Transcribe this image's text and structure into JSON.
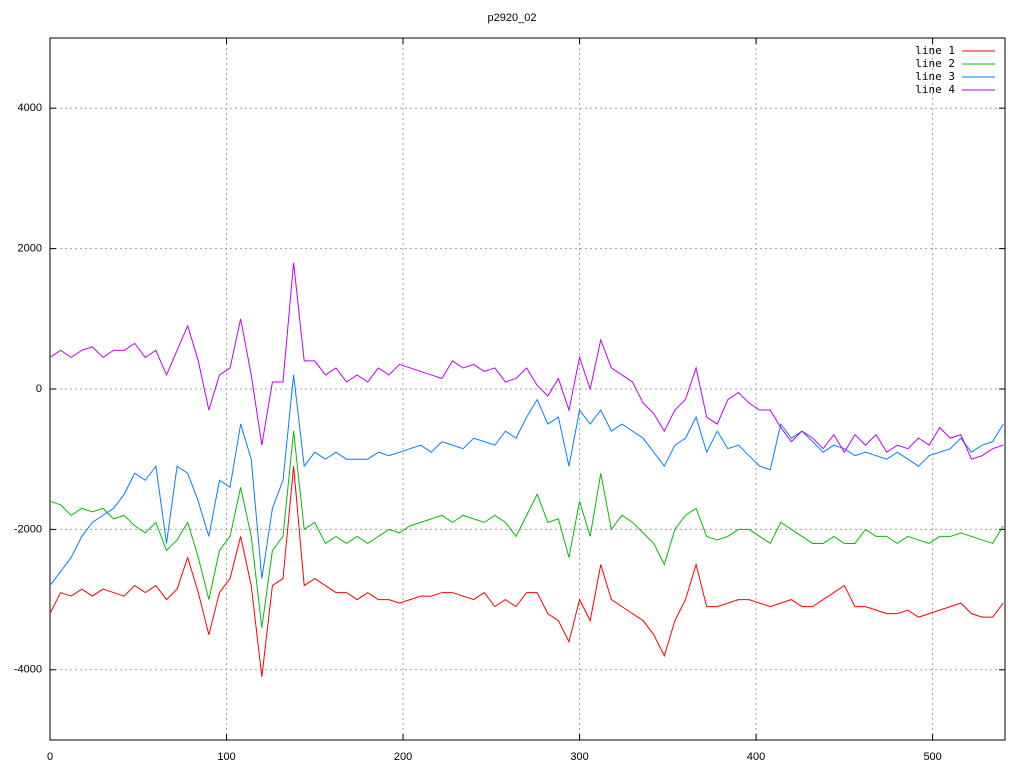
{
  "chart_data": {
    "type": "line",
    "title": "p2920_02",
    "x": [
      0,
      6,
      12,
      18,
      24,
      30,
      36,
      42,
      48,
      54,
      60,
      66,
      72,
      78,
      84,
      90,
      96,
      102,
      108,
      114,
      120,
      126,
      132,
      138,
      144,
      150,
      156,
      162,
      168,
      174,
      180,
      186,
      192,
      198,
      204,
      210,
      216,
      222,
      228,
      234,
      240,
      246,
      252,
      258,
      264,
      270,
      276,
      282,
      288,
      294,
      300,
      306,
      312,
      318,
      324,
      330,
      336,
      342,
      348,
      354,
      360,
      366,
      372,
      378,
      384,
      390,
      396,
      402,
      408,
      414,
      420,
      426,
      432,
      438,
      444,
      450,
      456,
      462,
      468,
      474,
      480,
      486,
      492,
      498,
      504,
      510,
      516,
      522,
      528,
      534,
      540
    ],
    "series": [
      {
        "name": "line 1",
        "color": "#ff0000",
        "values": [
          -3200,
          -2900,
          -2950,
          -2850,
          -2950,
          -2850,
          -2900,
          -2950,
          -2800,
          -2900,
          -2800,
          -3000,
          -2850,
          -2400,
          -2900,
          -3500,
          -2900,
          -2700,
          -2100,
          -2800,
          -4100,
          -2800,
          -2700,
          -1100,
          -2800,
          -2700,
          -2800,
          -2900,
          -2900,
          -3000,
          -2900,
          -3000,
          -3000,
          -3050,
          -3000,
          -2950,
          -2950,
          -2900,
          -2900,
          -2950,
          -3000,
          -2900,
          -3100,
          -3000,
          -3100,
          -2900,
          -2900,
          -3200,
          -3300,
          -3600,
          -3000,
          -3300,
          -2500,
          -3000,
          -3100,
          -3200,
          -3300,
          -3500,
          -3800,
          -3300,
          -3000,
          -2500,
          -3100,
          -3100,
          -3050,
          -3000,
          -3000,
          -3050,
          -3100,
          -3050,
          -3000,
          -3100,
          -3100,
          -3000,
          -2900,
          -2800,
          -3100,
          -3100,
          -3150,
          -3200,
          -3200,
          -3150,
          -3250,
          -3200,
          -3150,
          -3100,
          -3050,
          -3200,
          -3250,
          -3250,
          -3050
        ]
      },
      {
        "name": "line 2",
        "color": "#00c000",
        "values": [
          -1600,
          -1650,
          -1800,
          -1700,
          -1750,
          -1700,
          -1850,
          -1800,
          -1950,
          -2050,
          -1900,
          -2300,
          -2150,
          -1900,
          -2400,
          -3000,
          -2300,
          -2100,
          -1400,
          -2100,
          -3400,
          -2300,
          -2100,
          -600,
          -2000,
          -1900,
          -2200,
          -2100,
          -2200,
          -2100,
          -2200,
          -2100,
          -2000,
          -2050,
          -1950,
          -1900,
          -1850,
          -1800,
          -1900,
          -1800,
          -1850,
          -1900,
          -1800,
          -1900,
          -2100,
          -1800,
          -1500,
          -1900,
          -1850,
          -2400,
          -1600,
          -2100,
          -1200,
          -2000,
          -1800,
          -1900,
          -2050,
          -2200,
          -2500,
          -2000,
          -1800,
          -1700,
          -2100,
          -2150,
          -2100,
          -2000,
          -2000,
          -2100,
          -2200,
          -1900,
          -2000,
          -2100,
          -2200,
          -2200,
          -2100,
          -2200,
          -2200,
          -2000,
          -2100,
          -2100,
          -2200,
          -2100,
          -2150,
          -2200,
          -2100,
          -2100,
          -2050,
          -2100,
          -2150,
          -2200,
          -1950
        ]
      },
      {
        "name": "line 3",
        "color": "#0080ff",
        "values": [
          -2800,
          -2600,
          -2400,
          -2100,
          -1900,
          -1800,
          -1700,
          -1500,
          -1200,
          -1300,
          -1100,
          -2200,
          -1100,
          -1200,
          -1600,
          -2100,
          -1300,
          -1400,
          -500,
          -1000,
          -2700,
          -1700,
          -1300,
          200,
          -1100,
          -900,
          -1000,
          -900,
          -1000,
          -1000,
          -1000,
          -900,
          -950,
          -900,
          -850,
          -800,
          -900,
          -750,
          -800,
          -850,
          -700,
          -750,
          -800,
          -600,
          -700,
          -400,
          -150,
          -500,
          -400,
          -1100,
          -300,
          -500,
          -300,
          -600,
          -500,
          -600,
          -700,
          -900,
          -1100,
          -800,
          -700,
          -400,
          -900,
          -600,
          -850,
          -800,
          -950,
          -1100,
          -1150,
          -500,
          -700,
          -600,
          -750,
          -900,
          -800,
          -850,
          -950,
          -900,
          -950,
          -1000,
          -900,
          -1000,
          -1100,
          -950,
          -900,
          -850,
          -700,
          -900,
          -800,
          -750,
          -500
        ]
      },
      {
        "name": "line 4",
        "color": "#c000ff",
        "values": [
          450,
          550,
          450,
          550,
          600,
          450,
          550,
          550,
          650,
          450,
          550,
          200,
          550,
          900,
          400,
          -300,
          200,
          300,
          1000,
          200,
          -800,
          100,
          100,
          1800,
          400,
          400,
          200,
          300,
          100,
          200,
          100,
          300,
          200,
          350,
          300,
          250,
          200,
          150,
          400,
          300,
          350,
          250,
          300,
          100,
          150,
          300,
          50,
          -100,
          150,
          -300,
          450,
          0,
          700,
          300,
          200,
          100,
          -200,
          -350,
          -600,
          -300,
          -150,
          300,
          -400,
          -500,
          -150,
          -50,
          -200,
          -300,
          -300,
          -550,
          -750,
          -600,
          -700,
          -850,
          -650,
          -900,
          -650,
          -800,
          -650,
          -900,
          -800,
          -850,
          -700,
          -800,
          -550,
          -700,
          -650,
          -1000,
          -950,
          -850,
          -800
        ]
      }
    ],
    "xlim": [
      0,
      541
    ],
    "xticks": [
      0,
      100,
      200,
      300,
      400,
      500
    ],
    "ylim": [
      -5000,
      5000
    ],
    "yticks": [
      -4000,
      -2000,
      0,
      2000,
      4000
    ],
    "grid": true,
    "legend": "top-right"
  }
}
